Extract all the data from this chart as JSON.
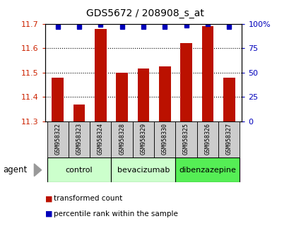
{
  "title": "GDS5672 / 208908_s_at",
  "samples": [
    "GSM958322",
    "GSM958323",
    "GSM958324",
    "GSM958328",
    "GSM958329",
    "GSM958330",
    "GSM958325",
    "GSM958326",
    "GSM958327"
  ],
  "transformed_counts": [
    11.48,
    11.37,
    11.68,
    11.5,
    11.515,
    11.525,
    11.62,
    11.69,
    11.48
  ],
  "percentile_ranks": [
    97,
    97,
    99,
    97,
    97,
    97,
    98,
    100,
    97
  ],
  "ylim": [
    11.3,
    11.7
  ],
  "yticks": [
    11.3,
    11.4,
    11.5,
    11.6,
    11.7
  ],
  "right_yticks": [
    0,
    25,
    50,
    75,
    100
  ],
  "right_ylim": [
    0,
    100
  ],
  "groups": [
    {
      "label": "control",
      "start": 0,
      "end": 2,
      "color": "#ccffcc"
    },
    {
      "label": "bevacizumab",
      "start": 3,
      "end": 5,
      "color": "#ccffcc"
    },
    {
      "label": "dibenzazepine",
      "start": 6,
      "end": 8,
      "color": "#55ee55"
    }
  ],
  "bar_color": "#bb1100",
  "percentile_color": "#0000bb",
  "bar_width": 0.55,
  "legend_text_red": "transformed count",
  "legend_text_blue": "percentile rank within the sample",
  "agent_label": "agent",
  "background_color": "#ffffff",
  "tick_label_bg": "#cccccc",
  "grid_color": "#555555",
  "border_color": "#000000"
}
